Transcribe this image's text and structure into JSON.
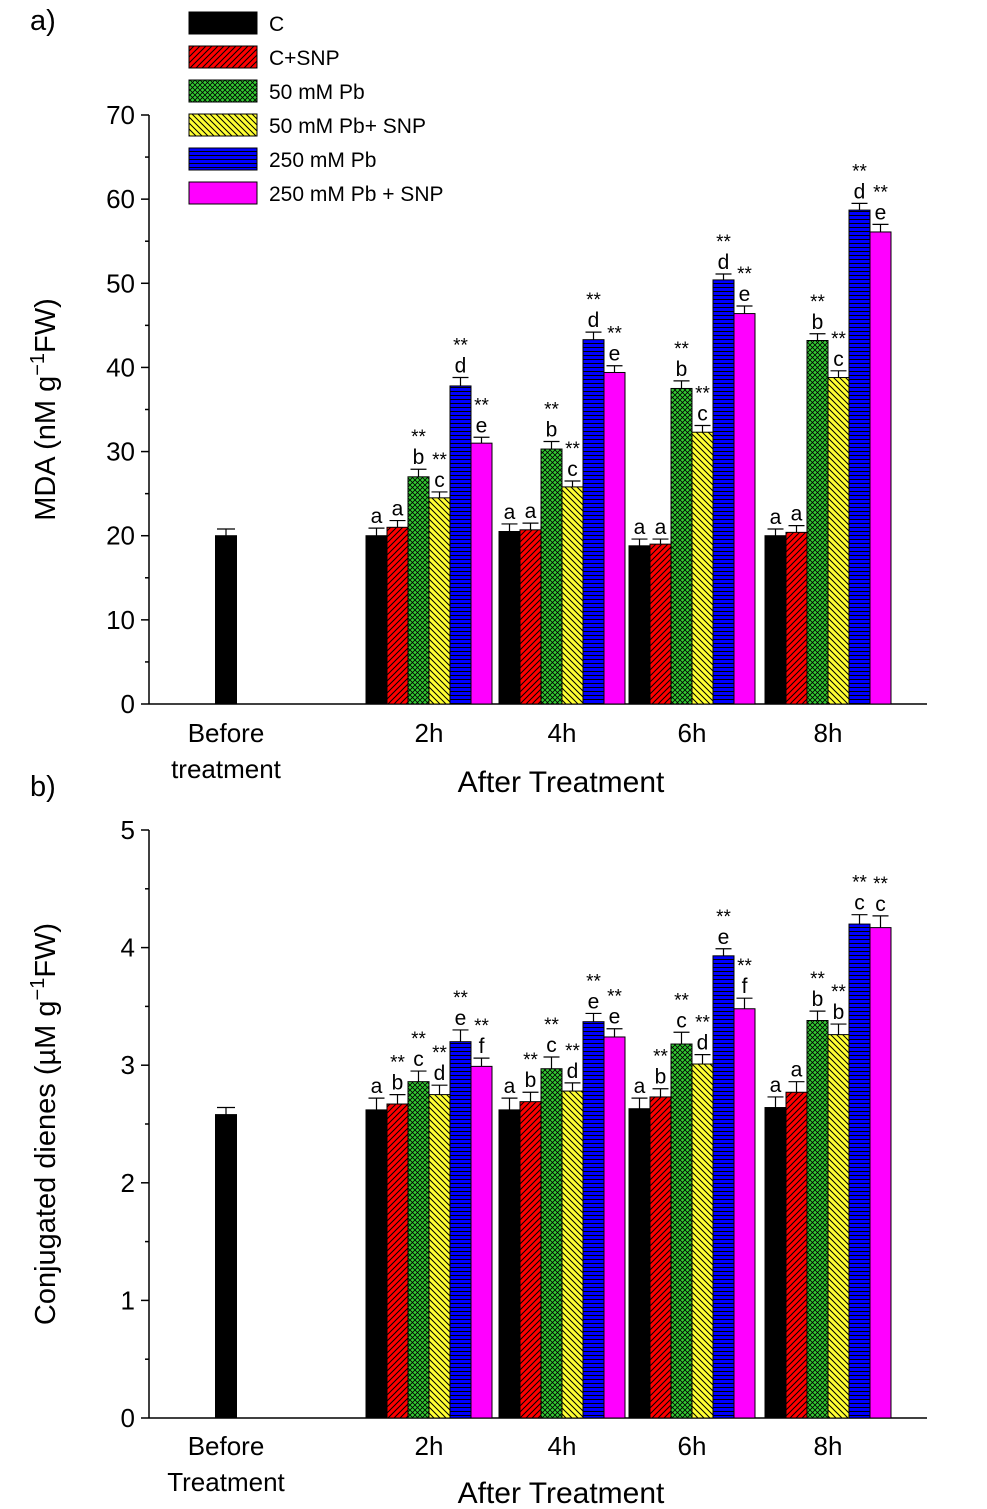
{
  "legend": [
    {
      "key": "C",
      "label": "C",
      "color": "#000000",
      "pattern": "solid"
    },
    {
      "key": "CSNP",
      "label": "C+SNP",
      "color": "#ff0000",
      "pattern": "diagonal"
    },
    {
      "key": "Pb50",
      "label": "50 mM Pb",
      "color": "#33cc33",
      "pattern": "crosshatch"
    },
    {
      "key": "Pb50SNP",
      "label": "50 mM Pb+ SNP",
      "color": "#ffff33",
      "pattern": "backdiagonal"
    },
    {
      "key": "Pb250",
      "label": "250 mM Pb",
      "color": "#0000ff",
      "pattern": "horizontal"
    },
    {
      "key": "Pb250SNP",
      "label": "250 mM Pb + SNP",
      "color": "#ff00ff",
      "pattern": "solid"
    }
  ],
  "chart_data": [
    {
      "type": "bar",
      "panel_label": "a)",
      "ylabel": "MDA (nM g⁻¹FW)",
      "ylabel_main": "MDA (nM g",
      "ylabel_sup": "−1",
      "ylabel_tail": "FW)",
      "xlabel": "After Treatment",
      "ylim": [
        0,
        70
      ],
      "yticks": [
        0,
        10,
        20,
        30,
        40,
        50,
        60,
        70
      ],
      "before_label": [
        "Before",
        "treatment"
      ],
      "before": {
        "value": 20.0,
        "error": 0.8
      },
      "categories": [
        "2h",
        "4h",
        "6h",
        "8h"
      ],
      "series": [
        {
          "name": "C",
          "values": [
            20.0,
            20.5,
            18.8,
            20.0
          ],
          "errors": [
            0.9,
            0.9,
            0.8,
            0.8
          ],
          "letters": [
            "a",
            "a",
            "a",
            "a"
          ],
          "stars": [
            "",
            "",
            "",
            ""
          ]
        },
        {
          "name": "C+SNP",
          "values": [
            21.0,
            20.7,
            19.0,
            20.4
          ],
          "errors": [
            0.8,
            0.8,
            0.6,
            0.8
          ],
          "letters": [
            "a",
            "a",
            "a",
            "a"
          ],
          "stars": [
            "",
            "",
            "",
            ""
          ]
        },
        {
          "name": "50 mM Pb",
          "values": [
            27.0,
            30.3,
            37.5,
            43.2
          ],
          "errors": [
            0.9,
            0.9,
            0.9,
            0.8
          ],
          "letters": [
            "b",
            "b",
            "b",
            "b"
          ],
          "stars": [
            "**",
            "**",
            "**",
            "**"
          ]
        },
        {
          "name": "50 mM Pb+ SNP",
          "values": [
            24.5,
            25.8,
            32.3,
            38.8
          ],
          "errors": [
            0.7,
            0.7,
            0.8,
            0.8
          ],
          "letters": [
            "c",
            "c",
            "c",
            "c"
          ],
          "stars": [
            "**",
            "**",
            "**",
            "**"
          ]
        },
        {
          "name": "250 mM Pb",
          "values": [
            37.8,
            43.3,
            50.4,
            58.7
          ],
          "errors": [
            1.0,
            0.9,
            0.7,
            0.8
          ],
          "letters": [
            "d",
            "d",
            "d",
            "d"
          ],
          "stars": [
            "**",
            "**",
            "**",
            "**"
          ]
        },
        {
          "name": "250 mM Pb + SNP",
          "values": [
            31.0,
            39.4,
            46.4,
            56.1
          ],
          "errors": [
            0.7,
            0.8,
            0.9,
            0.9
          ],
          "letters": [
            "e",
            "e",
            "e",
            "e"
          ],
          "stars": [
            "**",
            "**",
            "**",
            "**"
          ]
        }
      ]
    },
    {
      "type": "bar",
      "panel_label": "b)",
      "ylabel": "Conjugated dienes (µM g⁻¹FW)",
      "ylabel_main": "Conjugated dienes (µM g",
      "ylabel_sup": "−1",
      "ylabel_tail": "FW)",
      "xlabel": "After Treatment",
      "ylim": [
        0,
        5
      ],
      "yticks": [
        0,
        1,
        2,
        3,
        4,
        5
      ],
      "before_label": [
        "Before",
        "Treatment"
      ],
      "before": {
        "value": 2.58,
        "error": 0.06
      },
      "categories": [
        "2h",
        "4h",
        "6h",
        "8h"
      ],
      "series": [
        {
          "name": "C",
          "values": [
            2.62,
            2.62,
            2.63,
            2.64
          ],
          "errors": [
            0.1,
            0.1,
            0.09,
            0.09
          ],
          "letters": [
            "a",
            "a",
            "a",
            "a"
          ],
          "stars": [
            "",
            "",
            "",
            ""
          ]
        },
        {
          "name": "C+SNP",
          "values": [
            2.67,
            2.69,
            2.73,
            2.77
          ],
          "errors": [
            0.08,
            0.08,
            0.07,
            0.09
          ],
          "letters": [
            "b",
            "b",
            "b",
            "a"
          ],
          "stars": [
            "**",
            "**",
            "**",
            ""
          ]
        },
        {
          "name": "50 mM Pb",
          "values": [
            2.86,
            2.97,
            3.18,
            3.38
          ],
          "errors": [
            0.09,
            0.1,
            0.1,
            0.08
          ],
          "letters": [
            "c",
            "c",
            "c",
            "b"
          ],
          "stars": [
            "**",
            "**",
            "**",
            "**"
          ]
        },
        {
          "name": "50 mM Pb+ SNP",
          "values": [
            2.75,
            2.78,
            3.01,
            3.26
          ],
          "errors": [
            0.08,
            0.07,
            0.08,
            0.09
          ],
          "letters": [
            "d",
            "d",
            "d",
            "b"
          ],
          "stars": [
            "**",
            "**",
            "**",
            "**"
          ]
        },
        {
          "name": "250 mM Pb",
          "values": [
            3.2,
            3.37,
            3.93,
            4.2
          ],
          "errors": [
            0.1,
            0.07,
            0.06,
            0.08
          ],
          "letters": [
            "e",
            "e",
            "e",
            "c"
          ],
          "stars": [
            "**",
            "**",
            "**",
            "**"
          ]
        },
        {
          "name": "250 mM Pb + SNP",
          "values": [
            2.99,
            3.24,
            3.48,
            4.17
          ],
          "errors": [
            0.07,
            0.07,
            0.09,
            0.1
          ],
          "letters": [
            "f",
            "e",
            "f",
            "c"
          ],
          "stars": [
            "**",
            "**",
            "**",
            "**"
          ]
        }
      ]
    }
  ]
}
